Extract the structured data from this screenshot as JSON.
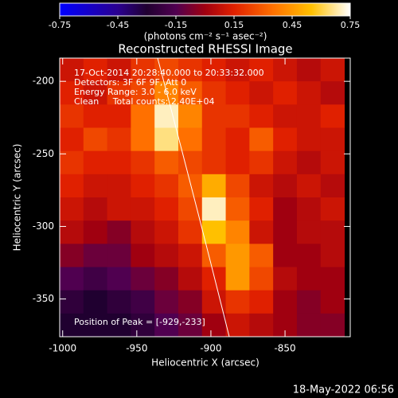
{
  "chart_data": {
    "type": "heatmap",
    "title": "Reconstructed RHESSI Image",
    "colorbar_label": "(photons cm⁻² s⁻¹ asec⁻²)",
    "annotations": [
      "17-Oct-2014 20:28:40.000 to 20:33:32.000",
      "Detectors: 3F 6F 9F, Att 0",
      "Energy Range: 3.0 - 6.0 keV",
      "Clean     Total counts: 2.40E+04"
    ],
    "peak_label": "Position of Peak = [-929,-233]",
    "footer": "18-May-2022 06:56",
    "xlabel": "Heliocentric X (arcsec)",
    "ylabel": "Heliocentric Y (arcsec)",
    "xlim": [
      -1002,
      -806
    ],
    "ylim": [
      -376,
      -184
    ],
    "xticks": [
      -1000,
      -950,
      -900,
      -850
    ],
    "yticks": [
      -200,
      -250,
      -300,
      -350
    ],
    "clim": [
      -0.75,
      0.75
    ],
    "cticks": [
      -0.75,
      -0.45,
      -0.15,
      0.15,
      0.45,
      0.75
    ],
    "colorscale": [
      {
        "value": -0.75,
        "color": "#0000ff"
      },
      {
        "value": -0.45,
        "color": "#2a0090"
      },
      {
        "value": -0.3,
        "color": "#200030"
      },
      {
        "value": -0.15,
        "color": "#500050"
      },
      {
        "value": 0.0,
        "color": "#a00010"
      },
      {
        "value": 0.15,
        "color": "#e02000"
      },
      {
        "value": 0.35,
        "color": "#ff7000"
      },
      {
        "value": 0.55,
        "color": "#ffc000"
      },
      {
        "value": 0.75,
        "color": "#ffffff"
      }
    ],
    "x": [
      -994,
      -978,
      -962,
      -946,
      -930,
      -914,
      -898,
      -882,
      -866,
      -850,
      -834,
      -818
    ],
    "y": [
      -192,
      -208,
      -224,
      -240,
      -256,
      -272,
      -288,
      -304,
      -320,
      -336,
      -352,
      -368
    ],
    "z": [
      [
        0.1,
        0.15,
        0.1,
        0.2,
        0.25,
        0.2,
        0.15,
        0.1,
        0.15,
        0.1,
        0.05,
        0.1
      ],
      [
        0.15,
        0.1,
        0.2,
        0.25,
        0.4,
        0.3,
        0.2,
        0.15,
        0.1,
        0.15,
        0.1,
        0.05
      ],
      [
        0.2,
        0.15,
        0.15,
        0.35,
        0.7,
        0.4,
        0.2,
        0.2,
        0.15,
        0.1,
        0.1,
        0.15
      ],
      [
        0.15,
        0.25,
        0.2,
        0.35,
        0.65,
        0.35,
        0.2,
        0.15,
        0.3,
        0.15,
        0.1,
        0.1
      ],
      [
        0.2,
        0.15,
        0.15,
        0.2,
        0.3,
        0.25,
        0.2,
        0.15,
        0.2,
        0.1,
        0.05,
        0.1
      ],
      [
        0.15,
        0.1,
        0.1,
        0.15,
        0.2,
        0.3,
        0.5,
        0.25,
        0.1,
        0.05,
        0.1,
        0.05
      ],
      [
        0.1,
        0.05,
        0.1,
        0.1,
        0.15,
        0.25,
        0.7,
        0.3,
        0.15,
        0.0,
        0.05,
        0.1
      ],
      [
        0.05,
        0.0,
        -0.05,
        0.05,
        0.1,
        0.2,
        0.55,
        0.4,
        0.1,
        0.0,
        0.05,
        0.05
      ],
      [
        -0.05,
        -0.1,
        -0.1,
        0.0,
        0.05,
        0.1,
        0.3,
        0.45,
        0.3,
        0.0,
        0.0,
        0.05
      ],
      [
        -0.15,
        -0.2,
        -0.15,
        -0.1,
        -0.05,
        0.05,
        0.15,
        0.45,
        0.25,
        0.05,
        0.0,
        0.0
      ],
      [
        -0.25,
        -0.3,
        -0.25,
        -0.2,
        -0.1,
        -0.05,
        0.1,
        0.2,
        0.15,
        0.0,
        -0.05,
        0.0
      ],
      [
        -0.3,
        -0.3,
        -0.3,
        -0.25,
        -0.15,
        -0.1,
        0.0,
        0.1,
        0.05,
        0.0,
        -0.05,
        -0.05
      ]
    ]
  }
}
